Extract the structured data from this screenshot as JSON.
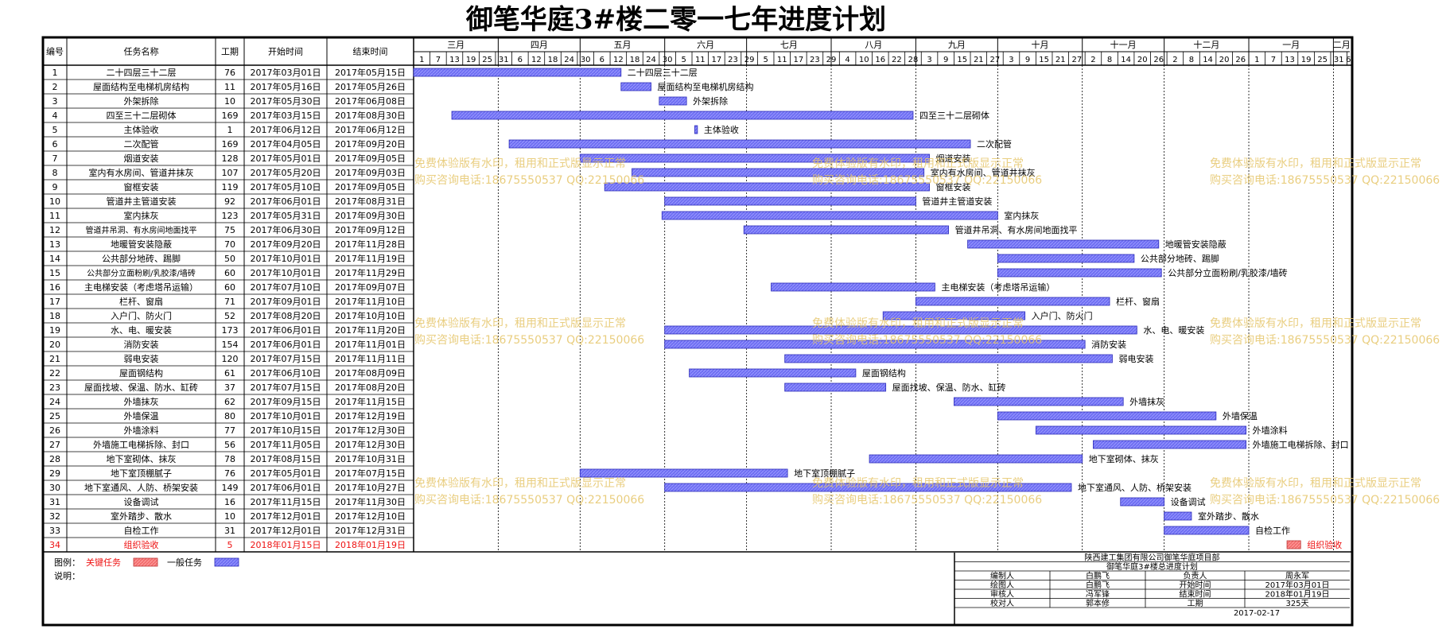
{
  "title": "御笔华庭3#楼二零一七年进度计划",
  "table_headers": {
    "id": "编号",
    "name": "任务名称",
    "duration": "工期",
    "start": "开始时间",
    "end": "结束时间"
  },
  "months": [
    "三月",
    "四月",
    "五月",
    "六月",
    "七月",
    "八月",
    "九月",
    "十月",
    "十一月",
    "十二月",
    "一月",
    "二月"
  ],
  "day_ticks": [
    "1",
    "7",
    "13",
    "19",
    "25",
    "31",
    "6",
    "12",
    "18",
    "24",
    "30",
    "6",
    "12",
    "18",
    "24",
    "30",
    "5",
    "11",
    "17",
    "23",
    "29",
    "5",
    "11",
    "17",
    "23",
    "29",
    "4",
    "10",
    "16",
    "22",
    "28",
    "3",
    "9",
    "15",
    "21",
    "27",
    "3",
    "9",
    "15",
    "21",
    "27",
    "2",
    "8",
    "14",
    "20",
    "26",
    "2",
    "8",
    "14",
    "20",
    "26",
    "1",
    "7",
    "13",
    "19",
    "25",
    "31",
    "6"
  ],
  "tasks": [
    {
      "id": "1",
      "name": "二十四层三十二层",
      "dur": "76",
      "start": "2017年03月01日",
      "end": "2017年05月15日",
      "label": "二十四层三十二层",
      "critical": false
    },
    {
      "id": "2",
      "name": "屋面结构至电梯机房结构",
      "dur": "11",
      "start": "2017年05月16日",
      "end": "2017年05月26日",
      "label": "屋面结构至电梯机房结构",
      "critical": false
    },
    {
      "id": "3",
      "name": "外架拆除",
      "dur": "10",
      "start": "2017年05月30日",
      "end": "2017年06月08日",
      "label": "外架拆除",
      "critical": false
    },
    {
      "id": "4",
      "name": "四至三十二层砌体",
      "dur": "169",
      "start": "2017年03月15日",
      "end": "2017年08月30日",
      "label": "四至三十二层砌体",
      "critical": false
    },
    {
      "id": "5",
      "name": "主体验收",
      "dur": "1",
      "start": "2017年06月12日",
      "end": "2017年06月12日",
      "label": "主体验收",
      "critical": false
    },
    {
      "id": "6",
      "name": "二次配管",
      "dur": "169",
      "start": "2017年04月05日",
      "end": "2017年09月20日",
      "label": "二次配管",
      "critical": false
    },
    {
      "id": "7",
      "name": "烟道安装",
      "dur": "128",
      "start": "2017年05月01日",
      "end": "2017年09月05日",
      "label": "烟道安装",
      "critical": false
    },
    {
      "id": "8",
      "name": "室内有水房间、管道井抹灰",
      "dur": "107",
      "start": "2017年05月20日",
      "end": "2017年09月03日",
      "label": "室内有水房间、管道井抹灰",
      "critical": false
    },
    {
      "id": "9",
      "name": "窗框安装",
      "dur": "119",
      "start": "2017年05月10日",
      "end": "2017年09月05日",
      "label": "窗框安装",
      "critical": false
    },
    {
      "id": "10",
      "name": "管道井主管道安装",
      "dur": "92",
      "start": "2017年06月01日",
      "end": "2017年08月31日",
      "label": "管道井主管道安装",
      "critical": false
    },
    {
      "id": "11",
      "name": "室内抹灰",
      "dur": "123",
      "start": "2017年05月31日",
      "end": "2017年09月30日",
      "label": "室内抹灰",
      "critical": false
    },
    {
      "id": "12",
      "name": "管道井吊洞、有水房间地面找平",
      "dur": "75",
      "start": "2017年06月30日",
      "end": "2017年09月12日",
      "label": "管道井吊洞、有水房间地面找平",
      "critical": false
    },
    {
      "id": "13",
      "name": "地暖管安装隐蔽",
      "dur": "70",
      "start": "2017年09月20日",
      "end": "2017年11月28日",
      "label": "地暖管安装隐蔽",
      "critical": false
    },
    {
      "id": "14",
      "name": "公共部分地砖、踢脚",
      "dur": "50",
      "start": "2017年10月01日",
      "end": "2017年11月19日",
      "label": "公共部分地砖、踢脚",
      "critical": false
    },
    {
      "id": "15",
      "name": "公共部分立面粉刷/乳胶漆/墙砖",
      "dur": "60",
      "start": "2017年10月01日",
      "end": "2017年11月29日",
      "label": "公共部分立面粉刷/乳胶漆/墙砖",
      "critical": false
    },
    {
      "id": "16",
      "name": "主电梯安装（考虑塔吊运输）",
      "dur": "60",
      "start": "2017年07月10日",
      "end": "2017年09月07日",
      "label": "主电梯安装（考虑塔吊运输）",
      "critical": false
    },
    {
      "id": "17",
      "name": "栏杆、窗扇",
      "dur": "71",
      "start": "2017年09月01日",
      "end": "2017年11月10日",
      "label": "栏杆、窗扇",
      "critical": false
    },
    {
      "id": "18",
      "name": "入户门、防火门",
      "dur": "52",
      "start": "2017年08月20日",
      "end": "2017年10月10日",
      "label": "入户门、防火门",
      "critical": false
    },
    {
      "id": "19",
      "name": "水、电、暖安装",
      "dur": "173",
      "start": "2017年06月01日",
      "end": "2017年11月20日",
      "label": "水、电、暖安装",
      "critical": false
    },
    {
      "id": "20",
      "name": "消防安装",
      "dur": "154",
      "start": "2017年06月01日",
      "end": "2017年11月01日",
      "label": "消防安装",
      "critical": false
    },
    {
      "id": "21",
      "name": "弱电安装",
      "dur": "120",
      "start": "2017年07月15日",
      "end": "2017年11月11日",
      "label": "弱电安装",
      "critical": false
    },
    {
      "id": "22",
      "name": "屋面钢结构",
      "dur": "61",
      "start": "2017年06月10日",
      "end": "2017年08月09日",
      "label": "屋面钢结构",
      "critical": false
    },
    {
      "id": "23",
      "name": "屋面找坡、保温、防水、缸砖",
      "dur": "37",
      "start": "2017年07月15日",
      "end": "2017年08月20日",
      "label": "屋面找坡、保温、防水、缸砖",
      "critical": false
    },
    {
      "id": "24",
      "name": "外墙抹灰",
      "dur": "62",
      "start": "2017年09月15日",
      "end": "2017年11月15日",
      "label": "外墙抹灰",
      "critical": false
    },
    {
      "id": "25",
      "name": "外墙保温",
      "dur": "80",
      "start": "2017年10月01日",
      "end": "2017年12月19日",
      "label": "外墙保温",
      "critical": false
    },
    {
      "id": "26",
      "name": "外墙涂料",
      "dur": "77",
      "start": "2017年10月15日",
      "end": "2017年12月30日",
      "label": "外墙涂料",
      "critical": false
    },
    {
      "id": "27",
      "name": "外墙施工电梯拆除、封口",
      "dur": "56",
      "start": "2017年11月05日",
      "end": "2017年12月30日",
      "label": "外墙施工电梯拆除、封口",
      "critical": false
    },
    {
      "id": "28",
      "name": "地下室砌体、抹灰",
      "dur": "78",
      "start": "2017年08月15日",
      "end": "2017年10月31日",
      "label": "地下室砌体、抹灰",
      "critical": false
    },
    {
      "id": "29",
      "name": "地下室顶棚腻子",
      "dur": "76",
      "start": "2017年05月01日",
      "end": "2017年07月15日",
      "label": "地下室顶棚腻子",
      "critical": false
    },
    {
      "id": "30",
      "name": "地下室通风、人防、桥架安装",
      "dur": "149",
      "start": "2017年06月01日",
      "end": "2017年10月27日",
      "label": "地下室通风、人防、桥架安装",
      "critical": false
    },
    {
      "id": "31",
      "name": "设备调试",
      "dur": "16",
      "start": "2017年11月15日",
      "end": "2017年11月30日",
      "label": "设备调试",
      "critical": false
    },
    {
      "id": "32",
      "name": "室外踏步、散水",
      "dur": "10",
      "start": "2017年12月01日",
      "end": "2017年12月10日",
      "label": "室外踏步、散水",
      "critical": false
    },
    {
      "id": "33",
      "name": "自检工作",
      "dur": "31",
      "start": "2017年12月01日",
      "end": "2017年12月31日",
      "label": "自检工作",
      "critical": false
    },
    {
      "id": "34",
      "name": "组织验收",
      "dur": "5",
      "start": "2018年01月15日",
      "end": "2018年01月19日",
      "label": "组织验收",
      "critical": true
    }
  ],
  "legend": {
    "label": "图例：",
    "critical": "关键任务",
    "normal": "一般任务",
    "note": "说明："
  },
  "info": {
    "company": "陕西建工集团有限公司御笔华庭项目部",
    "plan": "御笔华庭3#楼总进度计划",
    "rows": [
      [
        "编制人",
        "白鹏飞",
        "负责人",
        "周永军"
      ],
      [
        "绘图人",
        "白鹏飞",
        "开始时间",
        "2017年03月01日"
      ],
      [
        "审核人",
        "冯军锋",
        "结束时间",
        "2018年01月19日"
      ],
      [
        "校对人",
        "郭本修",
        "工期",
        "325天"
      ]
    ],
    "date": "2017-02-17"
  },
  "watermark": [
    "免费体验版有水印，租用和正式版显示正常",
    "购买咨询电话:18675550537 QQ:22150066"
  ],
  "colors": {
    "normal": "#6c6cf0",
    "critical": "#f06c6c",
    "critical_text": "#ee1111",
    "watermark": "#e6c66b"
  }
}
